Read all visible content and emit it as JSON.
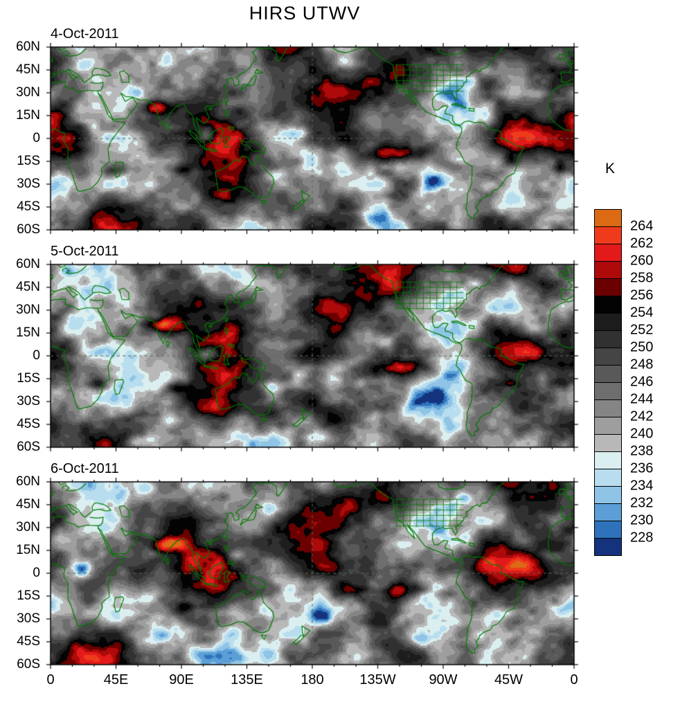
{
  "chart_data": {
    "type": "heatmap",
    "title": "HIRS UTWV",
    "units": "K",
    "grid": "dashed reference lines at equator and 180 longitude",
    "map_outline_color": "#007a00",
    "x_tick_labels": [
      "0",
      "45E",
      "90E",
      "135E",
      "180",
      "135W",
      "90W",
      "45W",
      "0"
    ],
    "y_tick_labels": [
      "60N",
      "45N",
      "30N",
      "15N",
      "0",
      "15S",
      "30S",
      "45S",
      "60S"
    ],
    "x_range_deg": [
      0,
      360
    ],
    "y_range_deg": [
      60,
      -60
    ],
    "contour_interval_k": 2,
    "colorbar": {
      "label": "K",
      "position": "right",
      "tick_labels": [
        "264",
        "262",
        "260",
        "258",
        "256",
        "254",
        "252",
        "250",
        "248",
        "246",
        "244",
        "242",
        "240",
        "238",
        "236",
        "234",
        "232",
        "230",
        "228"
      ],
      "colors_top_to_bottom": [
        "#DC6A15",
        "#EF3B1C",
        "#E31A1A",
        "#AE0A0A",
        "#6B0000",
        "#030303",
        "#1D1D1D",
        "#313131",
        "#454545",
        "#595959",
        "#6E6E6E",
        "#858585",
        "#9E9E9E",
        "#B8B8B8",
        "#DBEFF1",
        "#B8DDEE",
        "#8FC4E6",
        "#5B9FD6",
        "#2E72BC",
        "#15337D"
      ]
    },
    "features_format": "[lon_deg, lat_deg, amplitude_K, lon_radius_deg, lat_radius_deg] (approximate anomaly centers read from the maps)",
    "panels": [
      {
        "date": "4-Oct-2011",
        "warm": [
          [
            75,
            21,
            15,
            13,
            5
          ],
          [
            88,
            -20,
            10,
            9,
            4
          ],
          [
            46,
            -20,
            9,
            11,
            4
          ],
          [
            20,
            -23,
            7,
            8,
            4
          ],
          [
            240,
            -11,
            17,
            25,
            6
          ],
          [
            277,
            -18,
            8,
            9,
            4
          ],
          [
            316,
            -15,
            9,
            7,
            4
          ],
          [
            351,
            -20,
            9,
            7,
            4
          ]
        ],
        "cold": [
          [
            108,
            3,
            -14,
            6,
            5
          ],
          [
            130,
            9,
            -7,
            5,
            4
          ],
          [
            172,
            4,
            -8,
            7,
            4
          ],
          [
            205,
            49,
            -7,
            9,
            5
          ],
          [
            265,
            -28,
            -10,
            7,
            5
          ],
          [
            226,
            -52,
            -9,
            11,
            6
          ],
          [
            24,
            49,
            -8,
            9,
            5
          ],
          [
            336,
            29,
            -8,
            6,
            4
          ],
          [
            300,
            -31,
            -7,
            7,
            4
          ],
          [
            152,
            -25,
            -7,
            7,
            4
          ]
        ]
      },
      {
        "date": "5-Oct-2011",
        "warm": [
          [
            76,
            20,
            15,
            14,
            5
          ],
          [
            90,
            -21,
            10,
            9,
            4
          ],
          [
            238,
            -9,
            16,
            23,
            6
          ],
          [
            350,
            -17,
            9,
            7,
            4
          ],
          [
            32,
            -18,
            7,
            9,
            4
          ],
          [
            316,
            -18,
            7,
            6,
            3
          ]
        ],
        "cold": [
          [
            107,
            1,
            -12,
            6,
            5
          ],
          [
            152,
            -20,
            -9,
            7,
            5
          ],
          [
            186,
            -54,
            -12,
            11,
            6
          ],
          [
            60,
            -56,
            -10,
            9,
            5
          ],
          [
            265,
            -26,
            -10,
            7,
            5
          ],
          [
            320,
            46,
            -8,
            8,
            5
          ],
          [
            12,
            55,
            -8,
            8,
            4
          ],
          [
            230,
            10,
            -7,
            7,
            4
          ],
          [
            170,
            8,
            -7,
            6,
            4
          ]
        ]
      },
      {
        "date": "6-Oct-2011",
        "warm": [
          [
            79,
            19,
            15,
            14,
            5
          ],
          [
            241,
            -11,
            16,
            21,
            6
          ],
          [
            271,
            -14,
            9,
            7,
            4
          ],
          [
            206,
            -12,
            7,
            7,
            4
          ],
          [
            92,
            -22,
            8,
            8,
            4
          ],
          [
            350,
            -19,
            7,
            6,
            3
          ]
        ],
        "cold": [
          [
            100,
            -2,
            -10,
            6,
            5
          ],
          [
            22,
            2,
            -11,
            6,
            5
          ],
          [
            255,
            -43,
            -14,
            8,
            5
          ],
          [
            186,
            -30,
            -8,
            8,
            5
          ],
          [
            310,
            -26,
            -8,
            7,
            4
          ],
          [
            152,
            41,
            -8,
            8,
            5
          ],
          [
            345,
            11,
            -7,
            6,
            4
          ],
          [
            128,
            12,
            -7,
            6,
            4
          ]
        ]
      }
    ]
  }
}
